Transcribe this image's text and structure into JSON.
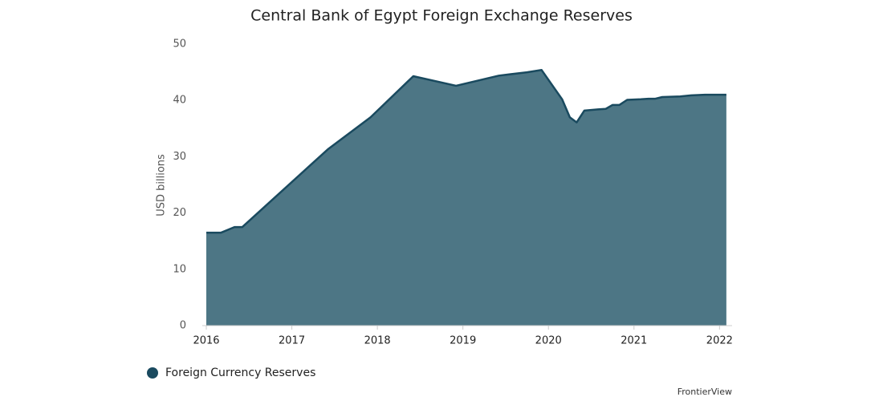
{
  "chart_data": {
    "type": "area",
    "title": "Central Bank of Egypt Foreign Exchange Reserves",
    "y_label": "USD billions",
    "source": "FrontierView",
    "x": [
      2016.0,
      2016.17,
      2016.33,
      2016.42,
      2017.42,
      2017.92,
      2018.42,
      2018.92,
      2019.42,
      2019.75,
      2019.92,
      2020.16,
      2020.25,
      2020.33,
      2020.42,
      2020.58,
      2020.67,
      2020.75,
      2020.83,
      2020.92,
      2021.08,
      2021.17,
      2021.25,
      2021.33,
      2021.54,
      2021.67,
      2021.83,
      2022.08
    ],
    "series": [
      {
        "name": "Foreign Currency Reserves",
        "color": "#4d7685",
        "line_color": "#1a4a5f",
        "values": [
          16.5,
          16.5,
          17.5,
          17.5,
          31.3,
          37.0,
          44.3,
          42.6,
          44.4,
          45.0,
          45.4,
          40.2,
          37.0,
          36.1,
          38.2,
          38.4,
          38.5,
          39.2,
          39.2,
          40.1,
          40.2,
          40.3,
          40.3,
          40.6,
          40.7,
          40.9,
          41.0,
          41.0
        ]
      }
    ],
    "xlim": [
      2016,
      2022.1
    ],
    "xticks": [
      2016,
      2017,
      2018,
      2019,
      2020,
      2021,
      2022
    ],
    "ylim": [
      0,
      50
    ],
    "yticks": [
      0,
      10,
      20,
      30,
      40,
      50
    ],
    "grid": false,
    "legend": "bottom-left"
  }
}
